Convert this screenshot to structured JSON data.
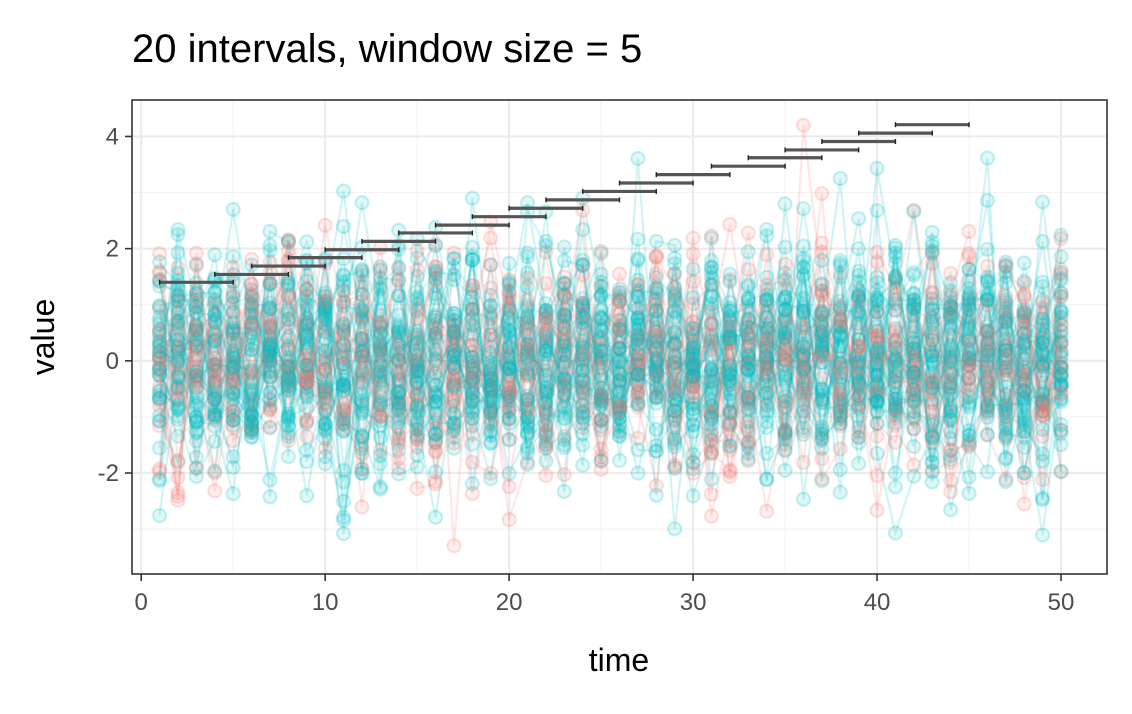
{
  "chart_data": {
    "type": "line",
    "title": "20 intervals, window size = 5",
    "xlabel": "time",
    "ylabel": "value",
    "xlim": [
      -0.5,
      52.5
    ],
    "ylim": [
      -3.8,
      4.65
    ],
    "x_ticks": [
      0,
      10,
      20,
      30,
      40,
      50
    ],
    "x_tick_labels": [
      "0",
      "10",
      "20",
      "30",
      "40",
      "50"
    ],
    "y_ticks": [
      -2,
      0,
      2,
      4
    ],
    "y_tick_labels": [
      "-2",
      "0",
      "2",
      "4"
    ],
    "grid": true,
    "legend": "none",
    "colors": {
      "series_a": "#F8766D",
      "series_b": "#00BFC4",
      "interval": "#555555"
    },
    "time_range": [
      1,
      50
    ],
    "series_groups": [
      {
        "color": "#F8766D",
        "count": 20,
        "approx_level": 0,
        "approx_spread": 1.0
      },
      {
        "color": "#00BFC4",
        "count": 40,
        "approx_level": 0,
        "approx_spread": 1.0
      }
    ],
    "intervals": [
      {
        "start": 1,
        "end": 5,
        "y": 1.4
      },
      {
        "start": 4,
        "end": 8,
        "y": 1.54
      },
      {
        "start": 6,
        "end": 10,
        "y": 1.69
      },
      {
        "start": 8,
        "end": 12,
        "y": 1.84
      },
      {
        "start": 10,
        "end": 14,
        "y": 1.98
      },
      {
        "start": 12,
        "end": 16,
        "y": 2.13
      },
      {
        "start": 14,
        "end": 18,
        "y": 2.28
      },
      {
        "start": 16,
        "end": 20,
        "y": 2.42
      },
      {
        "start": 18,
        "end": 22,
        "y": 2.57
      },
      {
        "start": 20,
        "end": 24,
        "y": 2.72
      },
      {
        "start": 22,
        "end": 26,
        "y": 2.87
      },
      {
        "start": 24,
        "end": 28,
        "y": 3.02
      },
      {
        "start": 26,
        "end": 30,
        "y": 3.17
      },
      {
        "start": 28,
        "end": 32,
        "y": 3.32
      },
      {
        "start": 31,
        "end": 35,
        "y": 3.47
      },
      {
        "start": 33,
        "end": 37,
        "y": 3.62
      },
      {
        "start": 35,
        "end": 39,
        "y": 3.76
      },
      {
        "start": 37,
        "end": 41,
        "y": 3.91
      },
      {
        "start": 39,
        "end": 43,
        "y": 4.06
      },
      {
        "start": 41,
        "end": 45,
        "y": 4.21
      }
    ]
  }
}
